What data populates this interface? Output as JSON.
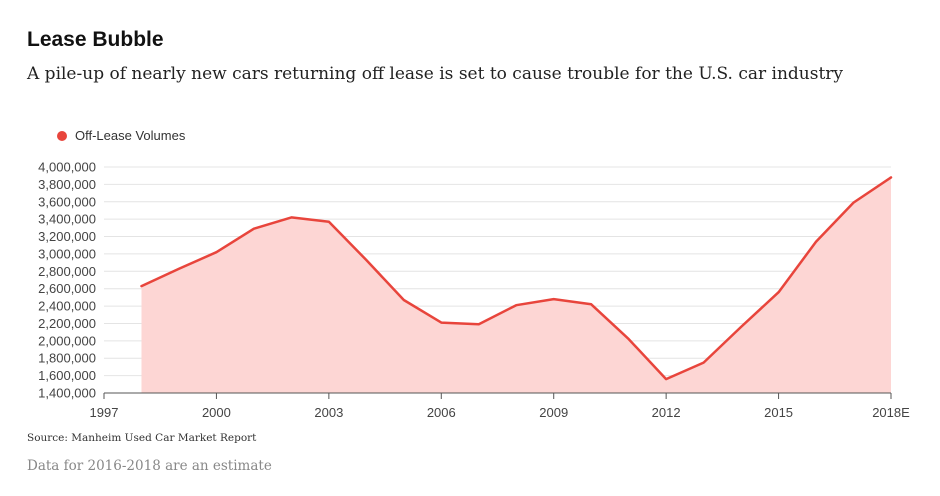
{
  "header": {
    "title": "Lease Bubble",
    "subtitle": "A pile-up of nearly new cars returning off lease is set to cause trouble for the U.S. car industry"
  },
  "footer": {
    "source": "Source: Manheim Used Car Market Report",
    "note": "Data for 2016-2018 are an estimate"
  },
  "colors": {
    "line": "#e8453c",
    "fill": "#fdd6d4",
    "grid": "#e4e4e4",
    "axis": "#555555"
  },
  "chart_data": {
    "type": "area",
    "title": "Lease Bubble",
    "xlabel": "",
    "ylabel": "",
    "x": [
      1998,
      1999,
      2000,
      2001,
      2002,
      2003,
      2004,
      2005,
      2006,
      2007,
      2008,
      2009,
      2010,
      2011,
      2012,
      2013,
      2014,
      2015,
      2016,
      2017,
      2018
    ],
    "series": [
      {
        "name": "Off-Lease Volumes",
        "values": [
          2630000,
          2830000,
          3020000,
          3290000,
          3420000,
          3370000,
          2930000,
          2470000,
          2210000,
          2190000,
          2410000,
          2480000,
          2420000,
          2020000,
          1560000,
          1750000,
          2160000,
          2560000,
          3140000,
          3590000,
          3880000
        ]
      }
    ],
    "xlim": [
      1997,
      2018
    ],
    "ylim": [
      1400000,
      4000000
    ],
    "x_ticks": [
      1997,
      2000,
      2003,
      2006,
      2009,
      2012,
      2015,
      2018
    ],
    "x_tick_labels": [
      "1997",
      "2000",
      "2003",
      "2006",
      "2009",
      "2012",
      "2015",
      "2018E"
    ],
    "y_ticks": [
      1400000,
      1600000,
      1800000,
      2000000,
      2200000,
      2400000,
      2600000,
      2800000,
      3000000,
      3200000,
      3400000,
      3600000,
      3800000,
      4000000
    ],
    "y_tick_labels": [
      "1,400,000",
      "1,600,000",
      "1,800,000",
      "2,000,000",
      "2,200,000",
      "2,400,000",
      "2,600,000",
      "2,800,000",
      "3,000,000",
      "3,200,000",
      "3,400,000",
      "3,600,000",
      "3,800,000",
      "4,000,000"
    ],
    "grid": true,
    "legend": "top-left"
  }
}
